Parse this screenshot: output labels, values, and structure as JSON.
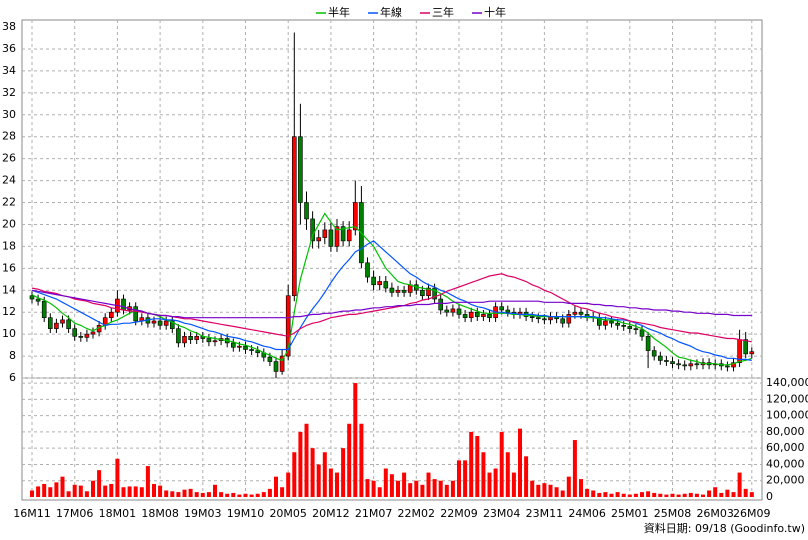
{
  "chart_data": {
    "type": "candlestick",
    "categories": [
      "16M11",
      null,
      null,
      null,
      null,
      null,
      null,
      "17M06",
      null,
      null,
      null,
      null,
      null,
      null,
      "18M01",
      null,
      null,
      null,
      null,
      null,
      null,
      "18M08",
      null,
      null,
      null,
      null,
      null,
      null,
      "19M03",
      null,
      null,
      null,
      null,
      null,
      null,
      "19M10",
      null,
      null,
      null,
      null,
      null,
      null,
      "20M05",
      null,
      null,
      null,
      null,
      null,
      null,
      "20M12",
      null,
      null,
      null,
      null,
      null,
      null,
      "21M07",
      null,
      null,
      null,
      null,
      null,
      null,
      "22M02",
      null,
      null,
      null,
      null,
      null,
      null,
      "22M09",
      null,
      null,
      null,
      null,
      null,
      null,
      "23M04",
      null,
      null,
      null,
      null,
      null,
      null,
      "23M11",
      null,
      null,
      null,
      null,
      null,
      null,
      "24M06",
      null,
      null,
      null,
      null,
      null,
      null,
      "25M01",
      null,
      null,
      null,
      null,
      null,
      null,
      "25M08",
      null,
      null,
      null,
      null,
      null,
      null,
      "26M03",
      null,
      null,
      null,
      null,
      null,
      "26M09"
    ],
    "open": [
      13.5,
      13.2,
      13.0,
      11.5,
      10.5,
      11.0,
      11.3,
      10.5,
      9.8,
      9.7,
      10.0,
      10.2,
      10.8,
      11.5,
      12.0,
      13.2,
      12.2,
      12.5,
      11.2,
      11.5,
      11.0,
      11.2,
      10.8,
      11.2,
      10.5,
      9.2,
      9.8,
      9.5,
      9.8,
      9.6,
      9.3,
      9.4,
      9.6,
      9.2,
      8.8,
      8.9,
      8.6,
      8.5,
      8.3,
      7.9,
      7.5,
      6.6,
      8.0,
      13.5,
      28.0,
      22.0,
      20.5,
      18.5,
      18.8,
      19.5,
      18.0,
      19.8,
      18.5,
      19.5,
      22.0,
      16.5,
      15.2,
      14.5,
      14.8,
      14.2,
      13.8,
      14.0,
      13.8,
      14.5,
      14.0,
      13.5,
      14.2,
      13.2,
      12.2,
      12.0,
      12.3,
      11.8,
      11.5,
      12.0,
      11.6,
      11.8,
      11.5,
      12.5,
      12.2,
      12.0,
      11.8,
      12.0,
      11.6,
      11.5,
      11.4,
      11.3,
      11.6,
      11.4,
      11.0,
      11.8,
      12.0,
      11.8,
      11.6,
      11.5,
      10.8,
      11.2,
      11.0,
      10.8,
      10.7,
      10.5,
      10.4,
      9.8,
      8.5,
      8.0,
      7.6,
      7.5,
      7.3,
      7.2,
      7.1,
      7.3,
      7.2,
      7.4,
      7.2,
      7.3,
      7.1,
      7.0,
      7.4,
      9.5,
      8.2
    ],
    "high": [
      13.9,
      13.6,
      13.4,
      11.9,
      11.4,
      11.7,
      11.7,
      10.9,
      10.2,
      10.4,
      10.6,
      11.2,
      11.9,
      12.4,
      14.0,
      13.6,
      12.9,
      12.9,
      11.9,
      11.9,
      11.6,
      11.6,
      11.6,
      11.6,
      10.9,
      10.2,
      10.2,
      10.2,
      10.2,
      10.0,
      9.8,
      10.0,
      10.0,
      9.6,
      9.3,
      9.3,
      9.0,
      8.9,
      8.7,
      8.3,
      7.9,
      8.6,
      14.5,
      37.5,
      31.0,
      23.0,
      21.2,
      19.5,
      20.2,
      20.2,
      20.5,
      20.3,
      20.3,
      24.0,
      23.5,
      17.0,
      15.8,
      15.3,
      15.3,
      14.7,
      14.4,
      14.4,
      14.9,
      14.9,
      14.4,
      14.6,
      14.6,
      13.6,
      12.6,
      12.7,
      12.7,
      12.2,
      12.4,
      12.4,
      12.2,
      12.2,
      12.9,
      12.9,
      12.6,
      12.4,
      12.4,
      12.4,
      12.0,
      11.9,
      11.8,
      12.0,
      12.0,
      11.8,
      12.2,
      12.6,
      12.4,
      12.2,
      12.0,
      11.9,
      11.6,
      11.6,
      11.4,
      11.2,
      11.1,
      10.9,
      10.8,
      10.2,
      8.9,
      8.4,
      8.0,
      7.9,
      7.7,
      7.6,
      7.7,
      7.7,
      7.8,
      7.8,
      7.7,
      7.7,
      7.5,
      7.8,
      10.4,
      10.2,
      8.8
    ],
    "low": [
      12.8,
      12.6,
      11.1,
      10.1,
      10.1,
      10.6,
      10.1,
      9.4,
      9.3,
      9.3,
      9.6,
      9.8,
      10.4,
      11.1,
      11.6,
      11.8,
      11.8,
      10.8,
      10.8,
      10.6,
      10.6,
      10.4,
      10.4,
      10.1,
      8.8,
      8.8,
      9.1,
      9.1,
      9.2,
      8.9,
      8.9,
      9.0,
      8.8,
      8.4,
      8.4,
      8.2,
      8.1,
      7.9,
      7.5,
      7.1,
      6.0,
      6.3,
      7.6,
      13.0,
      20.0,
      19.5,
      17.8,
      17.8,
      18.2,
      17.5,
      17.5,
      18.0,
      18.0,
      19.0,
      16.0,
      14.7,
      14.0,
      14.0,
      13.8,
      13.4,
      13.4,
      13.4,
      13.4,
      13.6,
      13.1,
      13.1,
      12.8,
      11.8,
      11.6,
      11.6,
      11.4,
      11.1,
      11.1,
      11.2,
      11.2,
      11.1,
      11.1,
      11.8,
      11.6,
      11.4,
      11.4,
      11.2,
      11.1,
      11.0,
      10.9,
      10.9,
      11.0,
      10.6,
      10.6,
      11.4,
      11.4,
      11.2,
      11.1,
      10.4,
      10.4,
      10.6,
      10.4,
      10.3,
      10.1,
      10.0,
      9.4,
      6.9,
      7.6,
      7.2,
      7.1,
      6.9,
      6.8,
      6.7,
      6.7,
      6.8,
      6.8,
      6.8,
      6.8,
      6.7,
      6.6,
      6.6,
      7.0,
      7.8,
      7.8
    ],
    "close": [
      13.2,
      13.0,
      11.5,
      10.5,
      11.0,
      11.3,
      10.5,
      9.8,
      9.7,
      10.0,
      10.2,
      10.8,
      11.5,
      12.0,
      13.2,
      12.2,
      12.5,
      11.2,
      11.5,
      11.0,
      11.2,
      10.8,
      11.2,
      10.5,
      9.2,
      9.8,
      9.5,
      9.8,
      9.6,
      9.3,
      9.4,
      9.6,
      9.2,
      8.8,
      8.9,
      8.6,
      8.5,
      8.3,
      7.9,
      7.5,
      6.6,
      8.0,
      13.5,
      28.0,
      22.0,
      20.5,
      18.5,
      18.8,
      19.5,
      18.0,
      19.8,
      18.5,
      19.5,
      22.0,
      16.5,
      15.2,
      14.5,
      14.8,
      14.2,
      13.8,
      14.0,
      13.8,
      14.5,
      14.0,
      13.5,
      14.2,
      13.2,
      12.2,
      12.0,
      12.3,
      11.8,
      11.5,
      12.0,
      11.6,
      11.8,
      11.5,
      12.5,
      12.2,
      12.0,
      11.8,
      12.0,
      11.6,
      11.5,
      11.4,
      11.3,
      11.6,
      11.4,
      11.0,
      11.8,
      12.0,
      11.8,
      11.6,
      11.5,
      10.8,
      11.2,
      11.0,
      10.8,
      10.7,
      10.5,
      10.4,
      9.8,
      8.5,
      8.0,
      7.6,
      7.5,
      7.3,
      7.2,
      7.1,
      7.3,
      7.2,
      7.4,
      7.2,
      7.3,
      7.1,
      7.0,
      7.4,
      9.5,
      8.2,
      8.4
    ],
    "up_color": "#ff0000",
    "down_color": "#008000",
    "ylim": [
      6,
      38
    ],
    "yticks": [
      6,
      8,
      10,
      12,
      14,
      16,
      18,
      20,
      22,
      24,
      26,
      28,
      30,
      32,
      34,
      36,
      38
    ],
    "grid": true,
    "series": [
      {
        "name": "半年",
        "color": "#00c000",
        "values": [
          13.6,
          13.3,
          13.1,
          12.8,
          12.4,
          11.9,
          11.5,
          11.0,
          10.8,
          10.5,
          10.3,
          10.6,
          10.8,
          11.1,
          11.3,
          11.6,
          11.9,
          12.2,
          12.1,
          11.9,
          11.8,
          11.6,
          11.3,
          11.1,
          10.8,
          10.6,
          10.3,
          10.1,
          9.8,
          9.7,
          9.6,
          9.5,
          9.4,
          9.3,
          9.1,
          9.0,
          8.8,
          8.6,
          8.3,
          8.1,
          7.8,
          7.6,
          8.6,
          12.0,
          15.0,
          17.0,
          19.0,
          20.0,
          21.0,
          20.2,
          19.5,
          19.6,
          19.7,
          19.8,
          19.2,
          18.6,
          18.0,
          17.0,
          16.0,
          15.4,
          14.8,
          14.6,
          14.5,
          14.3,
          14.2,
          14.1,
          14.0,
          13.7,
          13.4,
          13.0,
          12.7,
          12.5,
          12.3,
          12.1,
          11.9,
          11.9,
          11.9,
          11.9,
          11.9,
          11.8,
          11.8,
          11.7,
          11.7,
          11.6,
          11.6,
          11.6,
          11.6,
          11.6,
          11.6,
          11.6,
          11.6,
          11.5,
          11.5,
          11.4,
          11.3,
          11.3,
          11.2,
          11.0,
          10.9,
          10.7,
          10.5,
          10.1,
          9.6,
          9.2,
          8.8,
          8.3,
          7.9,
          7.8,
          7.6,
          7.5,
          7.3,
          7.3,
          7.3,
          7.2,
          7.2,
          7.3,
          7.5,
          7.6,
          7.8
        ]
      },
      {
        "name": "年線",
        "color": "#0055ff",
        "values": [
          14.0,
          13.8,
          13.6,
          13.4,
          13.2,
          12.9,
          12.6,
          12.3,
          12.0,
          11.7,
          11.4,
          11.1,
          10.8,
          10.9,
          10.9,
          11.0,
          11.0,
          11.1,
          11.2,
          11.3,
          11.4,
          11.4,
          11.3,
          11.3,
          11.2,
          11.0,
          10.9,
          10.7,
          10.5,
          10.3,
          10.2,
          10.0,
          9.8,
          9.7,
          9.6,
          9.4,
          9.3,
          9.1,
          8.9,
          8.8,
          8.6,
          8.6,
          8.6,
          9.6,
          10.6,
          11.5,
          12.3,
          13.0,
          13.8,
          14.7,
          15.5,
          16.2,
          16.8,
          17.5,
          17.8,
          18.2,
          18.5,
          18.0,
          17.5,
          17.0,
          16.5,
          16.0,
          15.5,
          15.2,
          14.8,
          14.5,
          14.3,
          14.0,
          13.8,
          13.5,
          13.2,
          13.0,
          12.7,
          12.5,
          12.4,
          12.2,
          12.0,
          12.0,
          11.9,
          11.9,
          11.8,
          11.8,
          11.8,
          11.7,
          11.7,
          11.6,
          11.6,
          11.6,
          11.6,
          11.6,
          11.6,
          11.6,
          11.6,
          11.5,
          11.5,
          11.4,
          11.3,
          11.3,
          11.2,
          11.0,
          10.8,
          10.5,
          10.3,
          10.1,
          9.8,
          9.6,
          9.3,
          9.1,
          8.9,
          8.6,
          8.4,
          8.3,
          8.1,
          8.0,
          7.8,
          7.8,
          7.7,
          7.7,
          7.6
        ]
      },
      {
        "name": "三年",
        "color": "#dd0066",
        "values": [
          14.2,
          14.1,
          13.9,
          13.8,
          13.7,
          13.5,
          13.4,
          13.2,
          13.1,
          13.0,
          12.8,
          12.7,
          12.6,
          12.4,
          12.3,
          12.2,
          12.1,
          12.1,
          12.0,
          11.9,
          11.8,
          11.7,
          11.7,
          11.6,
          11.5,
          11.4,
          11.4,
          11.3,
          11.2,
          11.1,
          11.0,
          10.9,
          10.8,
          10.7,
          10.6,
          10.5,
          10.4,
          10.3,
          10.2,
          10.1,
          10.0,
          9.9,
          9.8,
          10.1,
          10.5,
          10.8,
          11.0,
          11.1,
          11.3,
          11.5,
          11.6,
          11.7,
          11.8,
          11.8,
          11.9,
          12.0,
          12.1,
          12.2,
          12.3,
          12.4,
          12.5,
          12.6,
          12.8,
          12.9,
          13.1,
          13.2,
          13.4,
          13.6,
          13.9,
          14.1,
          14.3,
          14.5,
          14.7,
          14.9,
          15.1,
          15.3,
          15.4,
          15.5,
          15.3,
          15.2,
          15.0,
          14.8,
          14.5,
          14.3,
          14.0,
          13.8,
          13.5,
          13.2,
          12.9,
          12.6,
          12.4,
          12.3,
          12.1,
          11.9,
          11.8,
          11.6,
          11.5,
          11.4,
          11.2,
          11.1,
          11.0,
          10.9,
          10.8,
          10.6,
          10.5,
          10.4,
          10.3,
          10.2,
          10.1,
          10.1,
          10.0,
          9.9,
          9.8,
          9.7,
          9.6,
          9.6,
          9.5,
          9.4,
          9.3
        ]
      },
      {
        "name": "十年",
        "color": "#7700cc",
        "values": [
          14.0,
          13.9,
          13.8,
          13.7,
          13.6,
          13.5,
          13.4,
          13.3,
          13.2,
          13.1,
          13.0,
          12.9,
          12.8,
          12.7,
          12.6,
          12.5,
          12.3,
          12.2,
          12.1,
          11.9,
          11.8,
          11.7,
          11.7,
          11.6,
          11.6,
          11.5,
          11.5,
          11.5,
          11.5,
          11.5,
          11.5,
          11.5,
          11.5,
          11.5,
          11.5,
          11.5,
          11.5,
          11.5,
          11.5,
          11.5,
          11.5,
          11.5,
          11.5,
          11.6,
          11.6,
          11.7,
          11.8,
          11.8,
          11.9,
          11.9,
          12.0,
          12.1,
          12.1,
          12.2,
          12.2,
          12.3,
          12.4,
          12.4,
          12.5,
          12.5,
          12.6,
          12.6,
          12.6,
          12.7,
          12.7,
          12.7,
          12.8,
          12.8,
          12.8,
          12.9,
          12.9,
          12.9,
          12.9,
          12.9,
          12.9,
          13.0,
          13.0,
          13.0,
          13.0,
          13.0,
          13.0,
          13.0,
          13.0,
          13.0,
          12.9,
          12.9,
          12.9,
          12.9,
          12.8,
          12.8,
          12.8,
          12.8,
          12.7,
          12.7,
          12.6,
          12.6,
          12.5,
          12.5,
          12.4,
          12.4,
          12.3,
          12.3,
          12.2,
          12.2,
          12.2,
          12.1,
          12.1,
          12.0,
          12.0,
          11.9,
          11.9,
          11.9,
          11.8,
          11.8,
          11.8,
          11.7,
          11.7,
          11.7,
          11.7
        ]
      }
    ],
    "volume": {
      "color": "#ff0000",
      "values": [
        8000,
        13000,
        16000,
        12000,
        18000,
        25000,
        7000,
        15000,
        14000,
        7000,
        20000,
        33000,
        14000,
        16000,
        47000,
        12000,
        13000,
        13000,
        12000,
        38000,
        16000,
        14000,
        8000,
        7000,
        6000,
        9000,
        10000,
        6000,
        5000,
        6000,
        15000,
        6000,
        4000,
        5000,
        3000,
        4000,
        3000,
        4000,
        6000,
        10000,
        25000,
        12000,
        30000,
        55000,
        80000,
        90000,
        60000,
        40000,
        55000,
        35000,
        30000,
        60000,
        90000,
        140000,
        90000,
        22000,
        20000,
        12000,
        35000,
        28000,
        20000,
        30000,
        17000,
        20000,
        15000,
        30000,
        22000,
        20000,
        15000,
        20000,
        45000,
        45000,
        80000,
        75000,
        55000,
        30000,
        35000,
        80000,
        55000,
        30000,
        84000,
        50000,
        20000,
        15000,
        17000,
        15000,
        12000,
        8000,
        25000,
        70000,
        22000,
        10000,
        8000,
        5000,
        6000,
        4000,
        6000,
        4000,
        3000,
        4000,
        6000,
        7000,
        5000,
        4000,
        3000,
        4000,
        3000,
        4000,
        5000,
        4000,
        3000,
        8000,
        12000,
        5000,
        9000,
        6000,
        30000,
        10000,
        6000
      ],
      "ylim": [
        0,
        145000
      ],
      "yticks": [
        0,
        {
          "value": 20000,
          "label": "20,000"
        },
        {
          "value": 40000,
          "label": "40,000"
        },
        {
          "value": 60000,
          "label": "60,000"
        },
        {
          "value": 80000,
          "label": "80,000"
        },
        {
          "value": 100000,
          "label": "100,000"
        },
        {
          "value": 120000,
          "label": "120,000"
        },
        {
          "value": 140000,
          "label": "140,000"
        }
      ]
    },
    "footnote": "資料日期: 09/18 (Goodinfo.tw)"
  }
}
